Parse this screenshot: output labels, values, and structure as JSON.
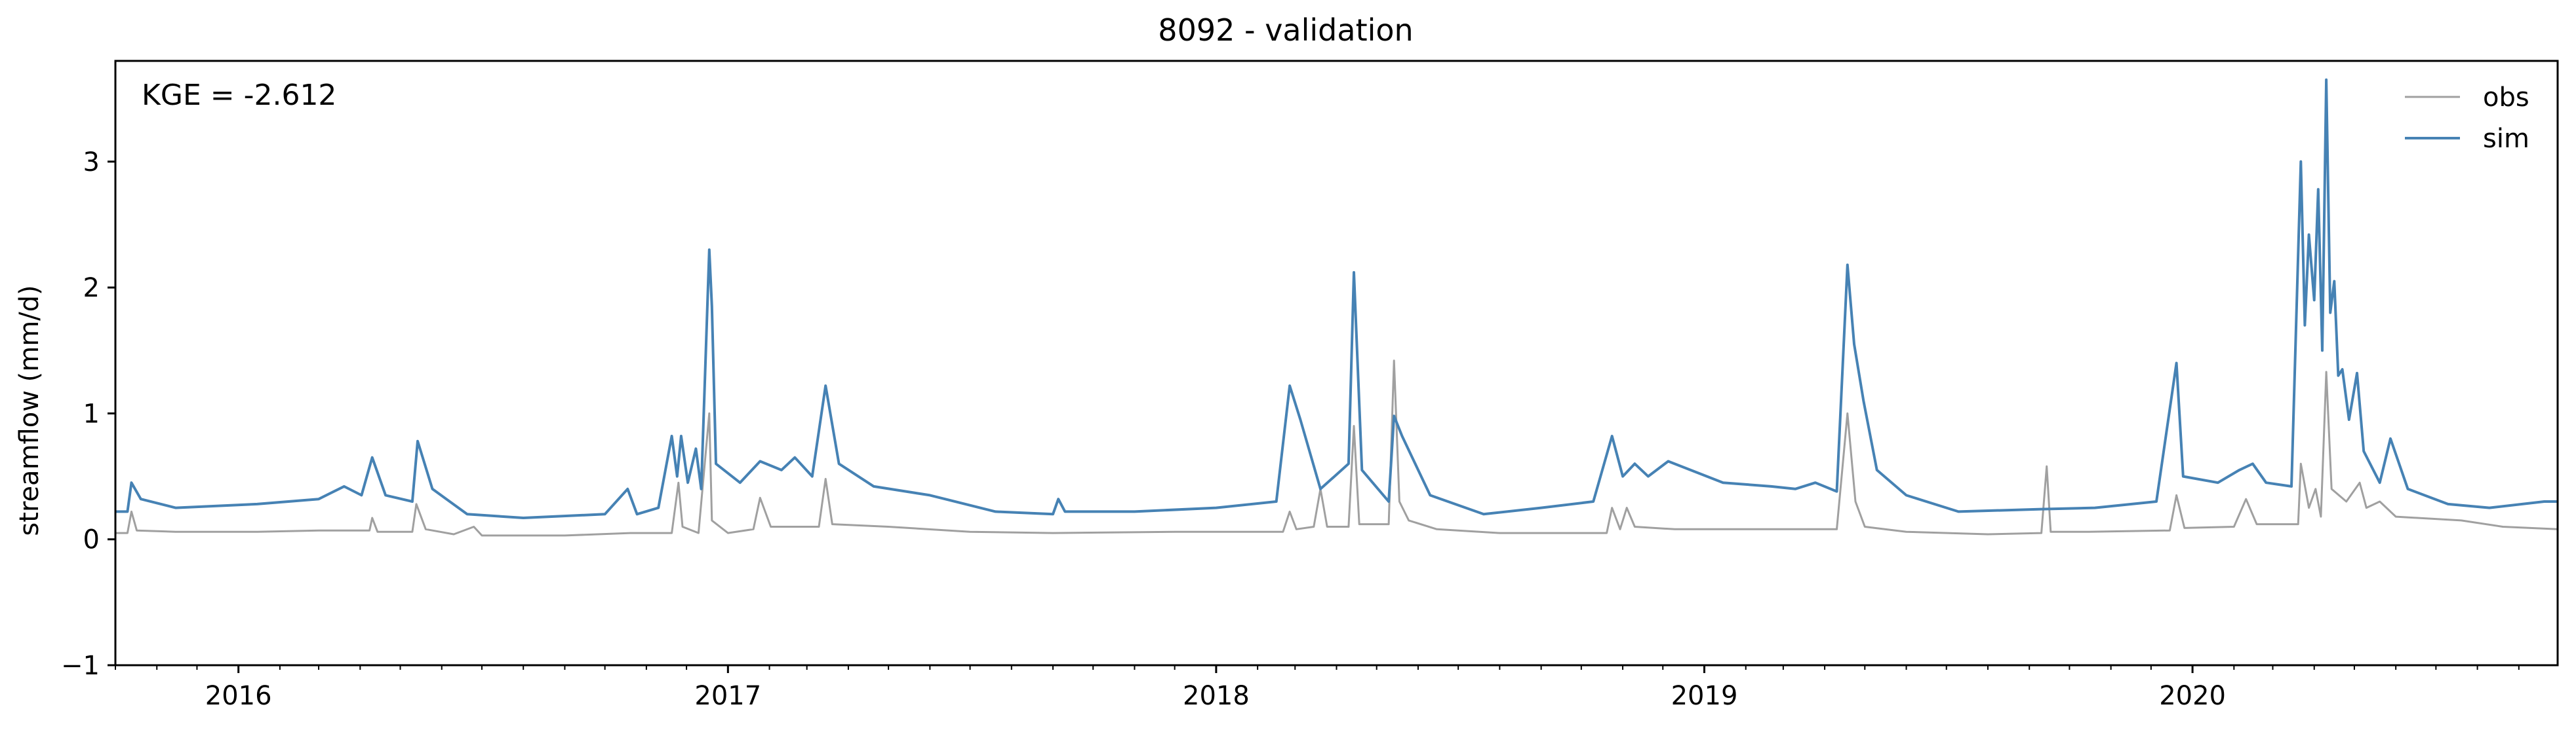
{
  "chart_data": {
    "type": "line",
    "title": "8092 - validation",
    "xlabel": "",
    "ylabel": "streamflow (mm/d)",
    "xlim": [
      "2015-10-01",
      "2020-09-30"
    ],
    "ylim": [
      -1,
      3.8
    ],
    "yticks": [
      -1,
      0,
      1,
      2,
      3
    ],
    "ytick_labels": [
      "−1",
      "0",
      "1",
      "2",
      "3"
    ],
    "xticks": [
      "2016-01-01",
      "2017-01-01",
      "2018-01-01",
      "2019-01-01",
      "2020-01-01"
    ],
    "xtick_labels": [
      "2016",
      "2017",
      "2018",
      "2019",
      "2020"
    ],
    "grid": false,
    "legend_position": "top-right",
    "annotation": "KGE = -2.612",
    "series": [
      {
        "name": "obs",
        "color": "#a0a0a0",
        "points": [
          [
            "2015-10-01",
            0.05
          ],
          [
            "2015-10-10",
            0.05
          ],
          [
            "2015-10-13",
            0.22
          ],
          [
            "2015-10-17",
            0.07
          ],
          [
            "2015-11-15",
            0.06
          ],
          [
            "2016-01-15",
            0.06
          ],
          [
            "2016-03-01",
            0.07
          ],
          [
            "2016-04-08",
            0.07
          ],
          [
            "2016-04-10",
            0.17
          ],
          [
            "2016-04-14",
            0.06
          ],
          [
            "2016-05-10",
            0.06
          ],
          [
            "2016-05-13",
            0.28
          ],
          [
            "2016-05-20",
            0.08
          ],
          [
            "2016-06-10",
            0.04
          ],
          [
            "2016-06-25",
            0.1
          ],
          [
            "2016-07-01",
            0.03
          ],
          [
            "2016-09-01",
            0.03
          ],
          [
            "2016-10-20",
            0.05
          ],
          [
            "2016-11-20",
            0.05
          ],
          [
            "2016-11-25",
            0.45
          ],
          [
            "2016-11-28",
            0.1
          ],
          [
            "2016-12-10",
            0.05
          ],
          [
            "2016-12-18",
            1.0
          ],
          [
            "2016-12-20",
            0.15
          ],
          [
            "2017-01-01",
            0.05
          ],
          [
            "2017-01-20",
            0.08
          ],
          [
            "2017-01-25",
            0.33
          ],
          [
            "2017-02-02",
            0.1
          ],
          [
            "2017-03-10",
            0.1
          ],
          [
            "2017-03-15",
            0.48
          ],
          [
            "2017-03-20",
            0.12
          ],
          [
            "2017-05-01",
            0.1
          ],
          [
            "2017-07-01",
            0.06
          ],
          [
            "2017-09-01",
            0.05
          ],
          [
            "2017-12-01",
            0.06
          ],
          [
            "2018-02-20",
            0.06
          ],
          [
            "2018-02-25",
            0.22
          ],
          [
            "2018-03-02",
            0.08
          ],
          [
            "2018-03-15",
            0.1
          ],
          [
            "2018-03-20",
            0.4
          ],
          [
            "2018-03-25",
            0.1
          ],
          [
            "2018-04-10",
            0.1
          ],
          [
            "2018-04-14",
            0.9
          ],
          [
            "2018-04-18",
            0.12
          ],
          [
            "2018-05-10",
            0.12
          ],
          [
            "2018-05-14",
            1.42
          ],
          [
            "2018-05-18",
            0.3
          ],
          [
            "2018-05-25",
            0.15
          ],
          [
            "2018-06-15",
            0.08
          ],
          [
            "2018-08-01",
            0.05
          ],
          [
            "2018-10-20",
            0.05
          ],
          [
            "2018-10-24",
            0.25
          ],
          [
            "2018-10-30",
            0.08
          ],
          [
            "2018-11-04",
            0.25
          ],
          [
            "2018-11-10",
            0.1
          ],
          [
            "2018-12-10",
            0.08
          ],
          [
            "2019-04-10",
            0.08
          ],
          [
            "2019-04-18",
            1.0
          ],
          [
            "2019-04-24",
            0.3
          ],
          [
            "2019-05-01",
            0.1
          ],
          [
            "2019-06-01",
            0.06
          ],
          [
            "2019-08-01",
            0.04
          ],
          [
            "2019-09-10",
            0.05
          ],
          [
            "2019-09-14",
            0.58
          ],
          [
            "2019-09-17",
            0.06
          ],
          [
            "2019-10-15",
            0.06
          ],
          [
            "2019-12-15",
            0.07
          ],
          [
            "2019-12-20",
            0.35
          ],
          [
            "2019-12-26",
            0.09
          ],
          [
            "2020-02-01",
            0.1
          ],
          [
            "2020-02-10",
            0.32
          ],
          [
            "2020-02-18",
            0.12
          ],
          [
            "2020-03-20",
            0.12
          ],
          [
            "2020-03-22",
            0.6
          ],
          [
            "2020-03-28",
            0.25
          ],
          [
            "2020-04-02",
            0.4
          ],
          [
            "2020-04-06",
            0.18
          ],
          [
            "2020-04-10",
            1.33
          ],
          [
            "2020-04-14",
            0.4
          ],
          [
            "2020-04-25",
            0.3
          ],
          [
            "2020-05-05",
            0.45
          ],
          [
            "2020-05-10",
            0.25
          ],
          [
            "2020-05-20",
            0.3
          ],
          [
            "2020-06-01",
            0.18
          ],
          [
            "2020-07-20",
            0.15
          ],
          [
            "2020-08-20",
            0.1
          ],
          [
            "2020-09-30",
            0.08
          ]
        ]
      },
      {
        "name": "sim",
        "color": "#4682b4",
        "points": [
          [
            "2015-10-01",
            0.22
          ],
          [
            "2015-10-10",
            0.22
          ],
          [
            "2015-10-13",
            0.45
          ],
          [
            "2015-10-20",
            0.32
          ],
          [
            "2015-11-15",
            0.25
          ],
          [
            "2016-01-15",
            0.28
          ],
          [
            "2016-03-01",
            0.32
          ],
          [
            "2016-03-20",
            0.42
          ],
          [
            "2016-04-02",
            0.35
          ],
          [
            "2016-04-10",
            0.65
          ],
          [
            "2016-04-20",
            0.35
          ],
          [
            "2016-05-10",
            0.3
          ],
          [
            "2016-05-14",
            0.78
          ],
          [
            "2016-05-25",
            0.4
          ],
          [
            "2016-06-20",
            0.2
          ],
          [
            "2016-08-01",
            0.17
          ],
          [
            "2016-10-01",
            0.2
          ],
          [
            "2016-10-18",
            0.4
          ],
          [
            "2016-10-25",
            0.2
          ],
          [
            "2016-11-10",
            0.25
          ],
          [
            "2016-11-20",
            0.82
          ],
          [
            "2016-11-24",
            0.5
          ],
          [
            "2016-11-27",
            0.82
          ],
          [
            "2016-12-02",
            0.45
          ],
          [
            "2016-12-08",
            0.72
          ],
          [
            "2016-12-12",
            0.4
          ],
          [
            "2016-12-18",
            2.3
          ],
          [
            "2016-12-20",
            1.85
          ],
          [
            "2016-12-23",
            0.6
          ],
          [
            "2017-01-10",
            0.45
          ],
          [
            "2017-01-25",
            0.62
          ],
          [
            "2017-02-10",
            0.55
          ],
          [
            "2017-02-20",
            0.65
          ],
          [
            "2017-03-05",
            0.5
          ],
          [
            "2017-03-15",
            1.22
          ],
          [
            "2017-03-25",
            0.6
          ],
          [
            "2017-04-20",
            0.42
          ],
          [
            "2017-06-01",
            0.35
          ],
          [
            "2017-07-20",
            0.22
          ],
          [
            "2017-09-01",
            0.2
          ],
          [
            "2017-09-05",
            0.32
          ],
          [
            "2017-09-10",
            0.22
          ],
          [
            "2017-11-01",
            0.22
          ],
          [
            "2018-01-01",
            0.25
          ],
          [
            "2018-02-15",
            0.3
          ],
          [
            "2018-02-25",
            1.22
          ],
          [
            "2018-03-05",
            0.95
          ],
          [
            "2018-03-20",
            0.4
          ],
          [
            "2018-04-10",
            0.6
          ],
          [
            "2018-04-14",
            2.12
          ],
          [
            "2018-04-20",
            0.55
          ],
          [
            "2018-05-10",
            0.3
          ],
          [
            "2018-05-14",
            0.98
          ],
          [
            "2018-05-20",
            0.82
          ],
          [
            "2018-06-10",
            0.35
          ],
          [
            "2018-07-20",
            0.2
          ],
          [
            "2018-09-01",
            0.25
          ],
          [
            "2018-10-10",
            0.3
          ],
          [
            "2018-10-24",
            0.82
          ],
          [
            "2018-11-01",
            0.5
          ],
          [
            "2018-11-10",
            0.6
          ],
          [
            "2018-11-20",
            0.5
          ],
          [
            "2018-12-05",
            0.62
          ],
          [
            "2019-01-15",
            0.45
          ],
          [
            "2019-02-20",
            0.42
          ],
          [
            "2019-03-10",
            0.4
          ],
          [
            "2019-03-25",
            0.45
          ],
          [
            "2019-04-10",
            0.38
          ],
          [
            "2019-04-18",
            2.18
          ],
          [
            "2019-04-23",
            1.55
          ],
          [
            "2019-04-30",
            1.1
          ],
          [
            "2019-05-10",
            0.55
          ],
          [
            "2019-06-01",
            0.35
          ],
          [
            "2019-07-10",
            0.22
          ],
          [
            "2019-09-10",
            0.24
          ],
          [
            "2019-10-20",
            0.25
          ],
          [
            "2019-12-05",
            0.3
          ],
          [
            "2019-12-20",
            1.4
          ],
          [
            "2019-12-25",
            0.5
          ],
          [
            "2020-01-20",
            0.45
          ],
          [
            "2020-02-05",
            0.55
          ],
          [
            "2020-02-15",
            0.6
          ],
          [
            "2020-02-25",
            0.45
          ],
          [
            "2020-03-15",
            0.42
          ],
          [
            "2020-03-22",
            3.0
          ],
          [
            "2020-03-25",
            1.7
          ],
          [
            "2020-03-28",
            2.42
          ],
          [
            "2020-04-01",
            1.9
          ],
          [
            "2020-04-04",
            2.78
          ],
          [
            "2020-04-07",
            1.5
          ],
          [
            "2020-04-10",
            3.65
          ],
          [
            "2020-04-13",
            1.8
          ],
          [
            "2020-04-16",
            2.05
          ],
          [
            "2020-04-19",
            1.3
          ],
          [
            "2020-04-22",
            1.35
          ],
          [
            "2020-04-27",
            0.95
          ],
          [
            "2020-05-03",
            1.32
          ],
          [
            "2020-05-08",
            0.7
          ],
          [
            "2020-05-20",
            0.45
          ],
          [
            "2020-05-28",
            0.8
          ],
          [
            "2020-06-10",
            0.4
          ],
          [
            "2020-07-10",
            0.28
          ],
          [
            "2020-08-10",
            0.25
          ],
          [
            "2020-09-20",
            0.3
          ],
          [
            "2020-09-30",
            0.3
          ]
        ]
      }
    ]
  }
}
